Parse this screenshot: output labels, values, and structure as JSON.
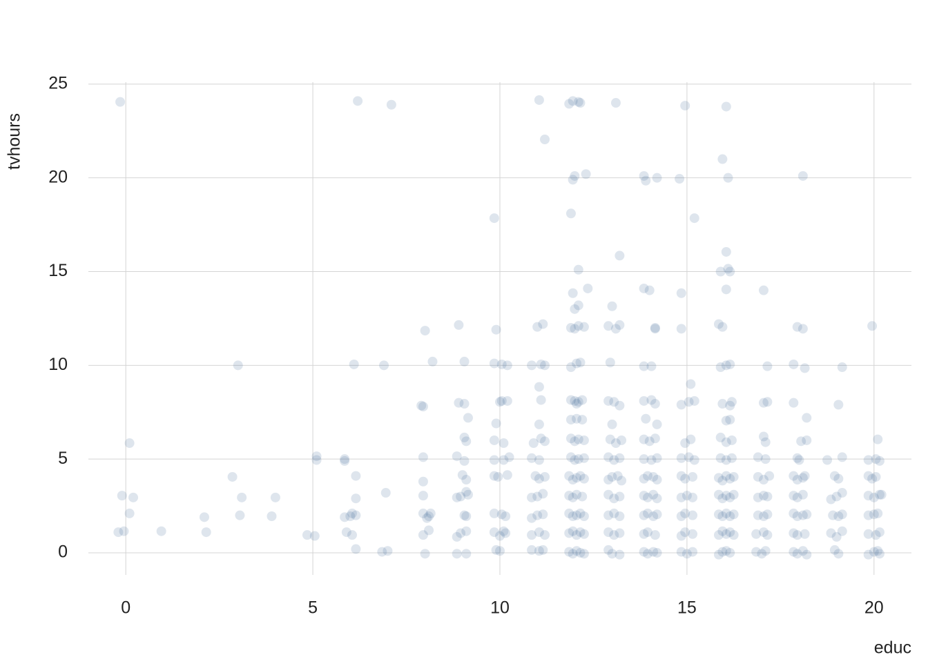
{
  "chart_data": {
    "type": "scatter",
    "x_label": "educ",
    "y_label": "tvhours",
    "xlim": [
      -1,
      21
    ],
    "ylim": [
      -1.4,
      25.4
    ],
    "xticks": [
      0,
      5,
      10,
      15,
      20
    ],
    "yticks": [
      0,
      5,
      10,
      15,
      20,
      25
    ],
    "grid": true,
    "color": "#3a6595",
    "x": [
      -0.15,
      6.2,
      7.1,
      11.05,
      11.85,
      11.95,
      12.15,
      12.1,
      13.1,
      14.95,
      16.05,
      11.2,
      15.95,
      12.0,
      11.95,
      12.3,
      13.85,
      13.9,
      14.2,
      14.8,
      16.1,
      18.1,
      9.85,
      11.9,
      15.2,
      16.05,
      12.1,
      13.2,
      15.9,
      16.1,
      16.15,
      11.95,
      12.35,
      13.85,
      14,
      14.85,
      16.05,
      17.05,
      12,
      12.1,
      13.0,
      8.9,
      8.0,
      9.9,
      11,
      11.15,
      11.9,
      12,
      12.1,
      12.25,
      12.9,
      13.1,
      13.2,
      14.15,
      14.15,
      14.85,
      15.85,
      15.95,
      17.95,
      18.1,
      19.95,
      3.0,
      6.1,
      6.9,
      8.2,
      9.05,
      9.85,
      10.05,
      10.2,
      10.85,
      11.1,
      11.2,
      11.9,
      12.05,
      12.15,
      12.95,
      13.85,
      14.05,
      15.9,
      16.05,
      16.15,
      17.15,
      17.85,
      18.15,
      19.15,
      15.1,
      11.05,
      7.9,
      7.95,
      8.9,
      9.05,
      10,
      10.05,
      10.2,
      11.1,
      11.9,
      12.0,
      12.1,
      12.2,
      12.05,
      12.9,
      13.05,
      13.2,
      13.85,
      14.05,
      14.15,
      14.85,
      15.05,
      15.2,
      15.95,
      16.15,
      16.2,
      17.05,
      17.15,
      17.85,
      19.05,
      9.15,
      9.9,
      11.05,
      11.9,
      12.05,
      12.2,
      13.0,
      13.9,
      14.2,
      16.05,
      16.15,
      18.2,
      0.1,
      9.05,
      9.1,
      9.85,
      10.1,
      10.9,
      11.1,
      11.2,
      11.9,
      12.0,
      12.1,
      12.25,
      12.95,
      13.1,
      13.25,
      13.85,
      14.0,
      14.15,
      14.95,
      15.1,
      15.9,
      16.05,
      16.2,
      17.05,
      17.1,
      18.05,
      18.2,
      20.1,
      5.1,
      5.1,
      5.85,
      5.85,
      7.95,
      8.85,
      9.05,
      9.85,
      10.1,
      10.25,
      10.85,
      11.05,
      11.9,
      12.0,
      12.1,
      12.25,
      12.9,
      13.05,
      13.2,
      13.85,
      14.05,
      14.2,
      14.85,
      15.05,
      15.2,
      15.9,
      16.05,
      16.2,
      16.9,
      17.1,
      17.95,
      18.0,
      18.75,
      19.15,
      19.85,
      20.05,
      20.15,
      2.85,
      6.15,
      7.95,
      9.0,
      9.1,
      9.85,
      9.95,
      10.2,
      10.95,
      11.05,
      11.2,
      11.85,
      11.95,
      12.05,
      12.15,
      12.25,
      12.9,
      13.0,
      13.15,
      13.25,
      13.85,
      13.95,
      14.1,
      14.2,
      14.85,
      14.95,
      15.15,
      15.85,
      15.95,
      16.05,
      16.15,
      16.25,
      16.9,
      17.05,
      17.2,
      17.85,
      17.95,
      18.1,
      18.15,
      18.95,
      19.05,
      19.85,
      19.95,
      20.05,
      -0.1,
      0.2,
      3.1,
      4.0,
      6.15,
      6.95,
      7.95,
      8.85,
      8.95,
      9.15,
      9.1,
      10.85,
      11.0,
      11.15,
      11.85,
      11.95,
      12.05,
      12.2,
      12.9,
      13.05,
      13.2,
      13.85,
      13.95,
      14.1,
      14.2,
      14.85,
      15.0,
      15.15,
      15.85,
      15.95,
      16.05,
      16.15,
      16.25,
      16.9,
      17.05,
      17.15,
      17.85,
      17.95,
      18.1,
      18.85,
      19.0,
      19.15,
      19.85,
      20.0,
      20.15,
      20.2,
      0.1,
      2.1,
      3.05,
      3.9,
      5.85,
      6.0,
      6.05,
      6.15,
      7.95,
      8.1,
      8.15,
      8.05,
      9.05,
      9.1,
      9.85,
      10.05,
      10.15,
      10.85,
      11.0,
      11.15,
      11.85,
      11.95,
      12.05,
      12.15,
      12.25,
      12.9,
      13.05,
      13.2,
      13.85,
      13.95,
      14.1,
      14.2,
      14.85,
      14.95,
      15.15,
      15.85,
      15.95,
      16.05,
      16.15,
      16.25,
      16.9,
      17.05,
      17.15,
      17.85,
      17.95,
      18.1,
      18.2,
      18.9,
      19.05,
      19.15,
      19.85,
      20.0,
      20.1,
      -0.2,
      -0.05,
      0.95,
      2.15,
      4.85,
      5.05,
      5.9,
      6.05,
      7.95,
      8.1,
      8.85,
      8.95,
      9.1,
      9.85,
      10.0,
      10.1,
      10.15,
      10.85,
      11.05,
      11.2,
      11.85,
      11.95,
      12.05,
      12.15,
      12.25,
      12.9,
      13.05,
      13.2,
      13.85,
      13.95,
      14.15,
      14.85,
      14.95,
      15.15,
      15.85,
      15.95,
      16.05,
      16.15,
      16.25,
      16.85,
      17.05,
      17.15,
      17.85,
      17.95,
      18.15,
      18.85,
      19.0,
      19.15,
      19.85,
      20.05,
      20.15,
      6.15,
      6.85,
      7.0,
      8.0,
      8.85,
      9.1,
      9.9,
      10.0,
      10.85,
      11.05,
      11.15,
      11.85,
      11.95,
      12.05,
      12.15,
      12.25,
      12.9,
      13.0,
      13.2,
      13.85,
      13.95,
      14.1,
      14.2,
      14.85,
      15.0,
      15.15,
      15.85,
      15.95,
      16.05,
      16.15,
      16.85,
      17.0,
      17.1,
      17.85,
      17.95,
      18.1,
      18.2,
      18.95,
      19.05,
      19.85,
      20.0,
      20.1,
      20.15
    ],
    "y": [
      24.05,
      24.1,
      23.9,
      24.15,
      23.95,
      24.1,
      24.0,
      24.05,
      24,
      23.85,
      23.8,
      22.05,
      21,
      20.1,
      19.9,
      20.2,
      20.1,
      19.85,
      20,
      19.95,
      20,
      20.1,
      17.85,
      18.1,
      17.85,
      16.05,
      15.1,
      15.85,
      15,
      15.15,
      15,
      13.85,
      14.1,
      14.1,
      14,
      13.85,
      14.05,
      14,
      13.0,
      13.2,
      13.15,
      12.15,
      11.85,
      11.9,
      12.05,
      12.2,
      12.0,
      11.95,
      12.1,
      12.05,
      12.1,
      11.95,
      12.15,
      11.95,
      12.0,
      11.95,
      12.2,
      12.05,
      12.05,
      11.95,
      12.1,
      10,
      10.05,
      10,
      10.2,
      10.2,
      10.1,
      10.05,
      10,
      10,
      10.05,
      10,
      9.9,
      10.1,
      10.15,
      10.15,
      9.95,
      9.95,
      9.9,
      10,
      10.05,
      9.95,
      10.05,
      9.85,
      9.9,
      9,
      8.85,
      7.85,
      7.8,
      8,
      7.95,
      8.05,
      8.1,
      8.1,
      8.15,
      8.15,
      8.1,
      8.05,
      8.15,
      7.95,
      8.1,
      8.05,
      7.85,
      8.1,
      8.15,
      7.95,
      7.9,
      8.05,
      8.1,
      7.95,
      7.85,
      8.05,
      8,
      8.05,
      8,
      7.9,
      7.2,
      6.9,
      6.85,
      7.1,
      7.15,
      7.1,
      6.85,
      7.15,
      6.85,
      7.05,
      7.1,
      7.2,
      5.85,
      6.15,
      5.95,
      6.0,
      5.85,
      5.85,
      6.1,
      5.95,
      6.1,
      5.95,
      6.05,
      6.0,
      6.05,
      5.85,
      6.0,
      6.05,
      5.95,
      6.1,
      5.85,
      6.05,
      6.15,
      5.9,
      6.0,
      6.2,
      5.9,
      5.95,
      6.0,
      6.05,
      5.15,
      4.95,
      5.0,
      4.9,
      5.1,
      5.15,
      4.9,
      4.95,
      4.95,
      5.1,
      5.05,
      4.95,
      5.1,
      4.95,
      5.0,
      5.05,
      5.1,
      4.95,
      5.05,
      5.0,
      4.95,
      5.05,
      5.05,
      5.1,
      4.95,
      5.05,
      4.95,
      5.05,
      5.1,
      5.0,
      5.05,
      4.95,
      4.95,
      5.1,
      4.95,
      5.0,
      4.9,
      4.05,
      4.1,
      3.8,
      4.15,
      3.9,
      4.1,
      4.05,
      4.15,
      4.1,
      3.95,
      4.05,
      4.1,
      3.9,
      4.0,
      4.1,
      3.95,
      3.9,
      4.05,
      4.1,
      3.85,
      3.95,
      4.1,
      4.05,
      3.9,
      4.1,
      3.95,
      4.05,
      4.0,
      3.85,
      4.1,
      3.95,
      4.05,
      4.05,
      3.9,
      4.1,
      4.1,
      3.9,
      4.0,
      4.1,
      4.1,
      3.95,
      4.1,
      3.95,
      4.05,
      3.05,
      2.95,
      2.95,
      2.95,
      2.9,
      3.2,
      3.05,
      2.95,
      3.0,
      3.1,
      3.25,
      2.95,
      3.0,
      3.15,
      3.05,
      2.95,
      3.1,
      3.0,
      3.1,
      2.9,
      3.0,
      3.05,
      2.95,
      3.1,
      2.9,
      2.95,
      3.05,
      2.95,
      3.1,
      2.9,
      3.05,
      2.95,
      3.1,
      2.95,
      3.05,
      3.0,
      3.05,
      2.95,
      3.1,
      2.85,
      3.0,
      3.2,
      3.05,
      2.95,
      3.1,
      3.1,
      2.1,
      1.9,
      2.0,
      1.95,
      1.9,
      1.95,
      2.1,
      2.0,
      2.1,
      1.95,
      2.1,
      1.85,
      2.0,
      1.95,
      2.1,
      2.05,
      1.95,
      1.85,
      2.0,
      2.05,
      2.1,
      1.95,
      2.0,
      2.1,
      1.95,
      2.0,
      2.1,
      1.95,
      2.0,
      2.1,
      1.95,
      2.05,
      1.95,
      2.1,
      2.0,
      2.05,
      1.95,
      2.1,
      1.95,
      2.05,
      2.0,
      1.95,
      2.05,
      2.1,
      1.95,
      2.0,
      2.05,
      2.0,
      1.95,
      2.05,
      2.0,
      2.05,
      2.1,
      1.1,
      1.15,
      1.15,
      1.1,
      0.95,
      0.9,
      1.1,
      0.95,
      0.95,
      1.2,
      0.85,
      1.05,
      1.15,
      1.1,
      0.9,
      1.15,
      1.05,
      0.95,
      1.1,
      0.95,
      1.05,
      1.15,
      0.95,
      1.1,
      1.0,
      1.1,
      0.95,
      1.05,
      1.0,
      1.1,
      0.95,
      0.9,
      1.1,
      1.0,
      0.95,
      1.15,
      1.0,
      1.1,
      0.95,
      1.0,
      1.1,
      0.95,
      1.05,
      0.95,
      1.0,
      1.05,
      0.85,
      1.15,
      1.0,
      0.95,
      1.1,
      0.2,
      0.05,
      0.1,
      -0.05,
      -0.05,
      -0.05,
      0.15,
      0.1,
      0.15,
      0.1,
      0.15,
      0.05,
      -0.05,
      0.1,
      0.0,
      -0.05,
      0.15,
      -0.05,
      -0.1,
      0.05,
      -0.05,
      0.05,
      0.0,
      0.05,
      -0.05,
      0.05,
      -0.1,
      0.05,
      0.1,
      0.0,
      0.05,
      -0.05,
      0.1,
      0.05,
      -0.05,
      0.1,
      -0.1,
      0.15,
      -0.05,
      -0.1,
      0.05,
      0.1,
      -0.05
    ]
  }
}
